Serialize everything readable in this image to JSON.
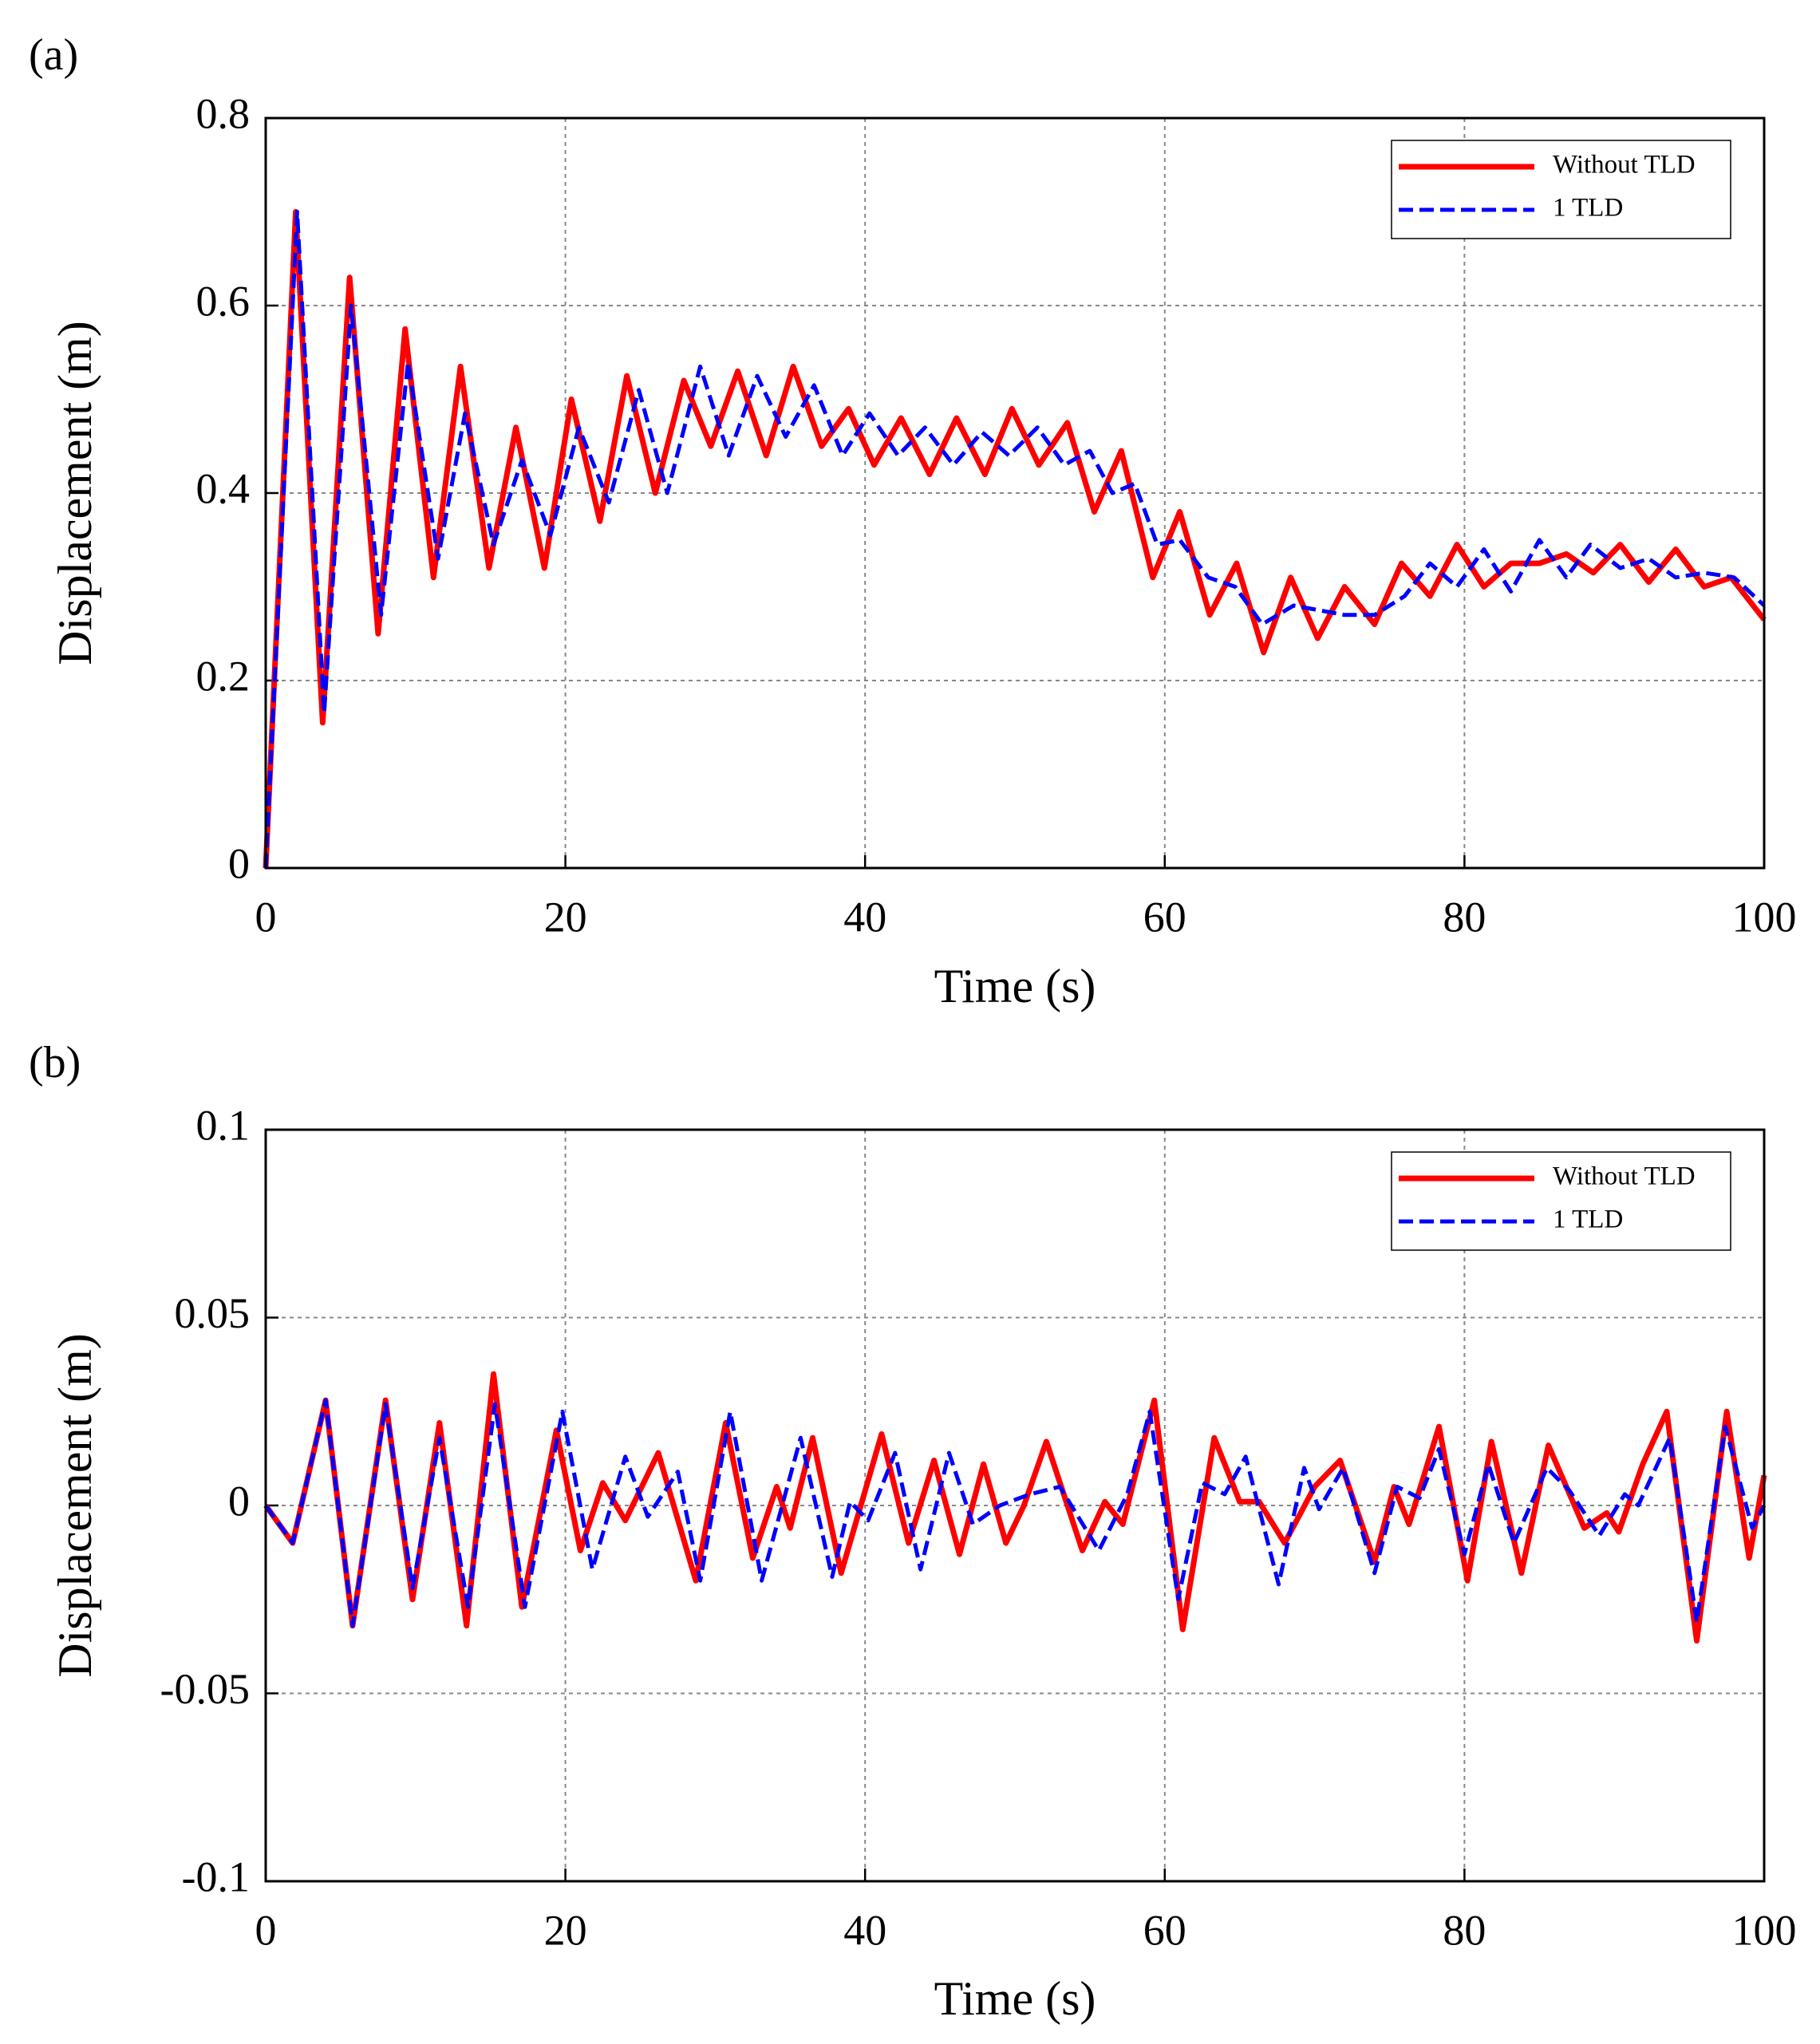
{
  "chart_data": [
    {
      "type": "line",
      "panel_label": "(a)",
      "xlabel": "Time (s)",
      "ylabel": "Displacement (m)",
      "xlim": [
        0,
        100
      ],
      "xticks": [
        0,
        20,
        40,
        60,
        80,
        100
      ],
      "ylim": [
        0,
        0.8
      ],
      "yticks": [
        0,
        0.2,
        0.4,
        0.6,
        0.8
      ],
      "grid": true,
      "legend": "upper right",
      "series": [
        {
          "name": "Without TLD",
          "color": "#ff0000",
          "style": "solid",
          "x": [
            0,
            2,
            3.8,
            5.6,
            7.5,
            9.3,
            11.2,
            13,
            14.9,
            16.7,
            18.6,
            20.4,
            22.3,
            24.1,
            26,
            27.9,
            29.7,
            31.5,
            33.4,
            35.2,
            37.1,
            38.9,
            40.6,
            42.4,
            44.3,
            46.1,
            48,
            49.8,
            51.6,
            53.5,
            55.3,
            57.1,
            59.2,
            61,
            63,
            64.8,
            66.6,
            68.4,
            70.2,
            72,
            74,
            75.8,
            77.7,
            79.5,
            81.3,
            83.1,
            85,
            86.8,
            88.6,
            90.4,
            92.3,
            94.1,
            96,
            97.8,
            100
          ],
          "values": [
            0,
            0.7,
            0.155,
            0.63,
            0.25,
            0.575,
            0.31,
            0.535,
            0.32,
            0.47,
            0.32,
            0.5,
            0.37,
            0.525,
            0.4,
            0.52,
            0.45,
            0.53,
            0.44,
            0.535,
            0.45,
            0.49,
            0.43,
            0.48,
            0.42,
            0.48,
            0.42,
            0.49,
            0.43,
            0.475,
            0.38,
            0.445,
            0.31,
            0.38,
            0.27,
            0.325,
            0.23,
            0.31,
            0.245,
            0.3,
            0.26,
            0.325,
            0.29,
            0.345,
            0.3,
            0.325,
            0.325,
            0.335,
            0.315,
            0.345,
            0.305,
            0.34,
            0.3,
            0.31,
            0.265
          ]
        },
        {
          "name": "1 TLD",
          "color": "#0000ff",
          "style": "dashed",
          "x": [
            0,
            2.1,
            3.9,
            5.7,
            7.7,
            9.5,
            11.5,
            13.3,
            15.2,
            17.1,
            19,
            20.9,
            22.9,
            24.9,
            26.8,
            29,
            30.9,
            32.8,
            34.7,
            36.6,
            38.5,
            40.3,
            42.2,
            44,
            45.9,
            47.8,
            49.6,
            51.5,
            53.3,
            55,
            56.5,
            58,
            59.5,
            61,
            62.9,
            64.7,
            66.5,
            68.6,
            72,
            74,
            76,
            77.7,
            79.5,
            81.3,
            83.1,
            85,
            86.8,
            88.4,
            90.4,
            92.3,
            94.1,
            96,
            98,
            100
          ],
          "values": [
            0,
            0.7,
            0.165,
            0.6,
            0.27,
            0.54,
            0.33,
            0.485,
            0.345,
            0.435,
            0.355,
            0.47,
            0.39,
            0.51,
            0.4,
            0.535,
            0.44,
            0.525,
            0.46,
            0.515,
            0.44,
            0.485,
            0.44,
            0.47,
            0.43,
            0.465,
            0.44,
            0.47,
            0.43,
            0.445,
            0.4,
            0.41,
            0.345,
            0.35,
            0.31,
            0.3,
            0.26,
            0.28,
            0.27,
            0.27,
            0.29,
            0.325,
            0.3,
            0.34,
            0.295,
            0.35,
            0.31,
            0.345,
            0.32,
            0.33,
            0.31,
            0.315,
            0.31,
            0.28
          ]
        }
      ]
    },
    {
      "type": "line",
      "panel_label": "(b)",
      "xlabel": "Time (s)",
      "ylabel": "Displacement (m)",
      "xlim": [
        0,
        100
      ],
      "xticks": [
        0,
        20,
        40,
        60,
        80,
        100
      ],
      "ylim": [
        -0.1,
        0.1
      ],
      "yticks": [
        -0.1,
        -0.05,
        0,
        0.05,
        0.1
      ],
      "grid": true,
      "legend": "upper right",
      "series": [
        {
          "name": "Without TLD",
          "color": "#ff0000",
          "style": "solid",
          "x": [
            0,
            1.8,
            4,
            5.8,
            8,
            9.8,
            11.6,
            13.4,
            15.2,
            17.1,
            19.4,
            21,
            22.5,
            24,
            26.2,
            28.7,
            30.7,
            32.5,
            34.1,
            35,
            36.5,
            38.4,
            41.1,
            42.9,
            44.6,
            46.3,
            47.9,
            49.4,
            50.6,
            52.1,
            54.5,
            56,
            57.2,
            59.3,
            61.2,
            63.3,
            65,
            66.3,
            68,
            70,
            71.7,
            74,
            75.3,
            76.3,
            78.3,
            80.2,
            81.8,
            83.8,
            85.6,
            88,
            89.5,
            90.3,
            91.9,
            93.5,
            95.5,
            97.5,
            99,
            100
          ],
          "values": [
            0,
            -0.01,
            0.028,
            -0.032,
            0.028,
            -0.025,
            0.022,
            -0.032,
            0.035,
            -0.027,
            0.02,
            -0.012,
            0.006,
            -0.004,
            0.014,
            -0.02,
            0.022,
            -0.014,
            0.005,
            -0.006,
            0.018,
            -0.018,
            0.019,
            -0.01,
            0.012,
            -0.013,
            0.011,
            -0.01,
            0,
            0.017,
            -0.012,
            0.001,
            -0.005,
            0.028,
            -0.033,
            0.018,
            0.001,
            0.001,
            -0.01,
            0.005,
            0.012,
            -0.015,
            0.005,
            -0.005,
            0.021,
            -0.02,
            0.017,
            -0.018,
            0.016,
            -0.006,
            -0.002,
            -0.007,
            0.011,
            0.025,
            -0.036,
            0.025,
            -0.014,
            0.008
          ]
        },
        {
          "name": "1 TLD",
          "color": "#0000ff",
          "style": "dashed",
          "x": [
            0,
            1.8,
            4,
            5.8,
            8,
            9.8,
            11.6,
            13.5,
            15.3,
            17.3,
            19.8,
            21.8,
            24,
            25.5,
            27.5,
            29,
            31,
            33.1,
            35.7,
            37.8,
            39,
            40.2,
            42,
            43.7,
            45.6,
            47.2,
            49,
            51,
            53,
            55.6,
            57.5,
            59,
            60.9,
            62.5,
            64,
            65.4,
            67.6,
            69.3,
            70.3,
            71.9,
            74,
            75.5,
            77,
            78.3,
            80,
            81.6,
            83.3,
            85.5,
            87,
            89,
            90.7,
            91.6,
            93.7,
            95.5,
            97.4,
            99.2,
            100
          ],
          "values": [
            0,
            -0.01,
            0.028,
            -0.032,
            0.027,
            -0.022,
            0.018,
            -0.027,
            0.027,
            -0.027,
            0.025,
            -0.017,
            0.013,
            -0.003,
            0.009,
            -0.02,
            0.025,
            -0.02,
            0.018,
            -0.019,
            0.001,
            -0.004,
            0.014,
            -0.017,
            0.014,
            -0.005,
            0,
            0.003,
            0.005,
            -0.012,
            0.003,
            0.025,
            -0.025,
            0.006,
            0.003,
            0.013,
            -0.021,
            0.01,
            -0.001,
            0.01,
            -0.018,
            0.005,
            0.002,
            0.015,
            -0.013,
            0.011,
            -0.01,
            0.01,
            0.004,
            -0.008,
            0.003,
            0,
            0.018,
            -0.031,
            0.021,
            -0.006,
            0
          ]
        }
      ]
    }
  ]
}
